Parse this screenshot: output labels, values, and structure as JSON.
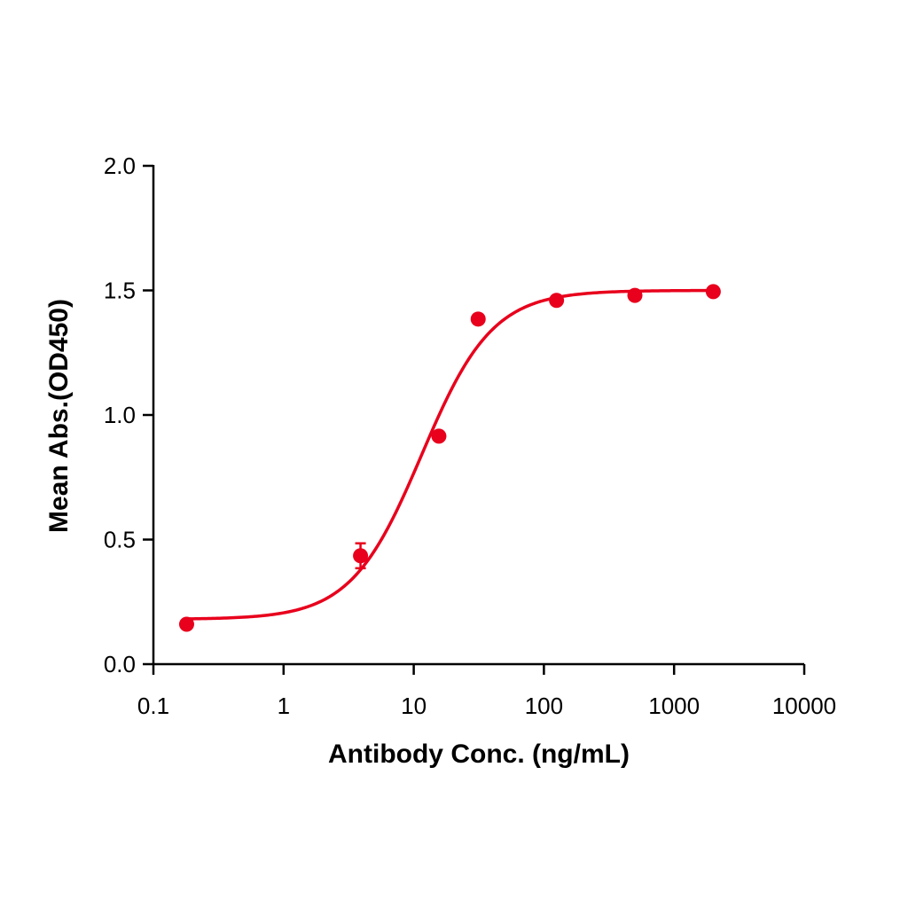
{
  "chart_data": {
    "type": "scatter",
    "xlabel": "Antibody Conc. (ng/mL)",
    "ylabel": "Mean Abs.(OD450)",
    "x_scale": "log",
    "xlim": [
      0.1,
      10000
    ],
    "ylim": [
      0,
      2.0
    ],
    "x_ticks": [
      0.1,
      1,
      10,
      100,
      1000,
      10000
    ],
    "x_tick_labels": [
      "0.1",
      "1",
      "10",
      "100",
      "1000",
      "10000"
    ],
    "y_ticks": [
      0,
      0.5,
      1.0,
      1.5,
      2.0
    ],
    "y_tick_labels": [
      "0.0",
      "0.5",
      "1.0",
      "1.5",
      "2.0"
    ],
    "grid": false,
    "color": "#e8001c",
    "series": [
      {
        "x": [
          0.18,
          3.9,
          15.6,
          31.25,
          125,
          500,
          2000
        ],
        "y": [
          0.16,
          0.435,
          0.915,
          1.385,
          1.46,
          1.48,
          1.495
        ],
        "error": [
          0,
          0.05,
          0,
          0,
          0,
          0,
          0
        ]
      }
    ],
    "fit": {
      "model": "4PL",
      "bottom": 0.18,
      "top": 1.5,
      "ec50": 11.5,
      "hill": 1.6
    }
  }
}
